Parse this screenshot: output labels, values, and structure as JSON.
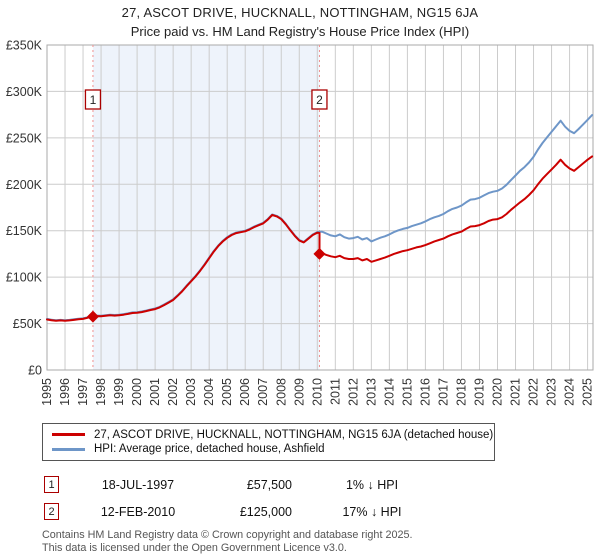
{
  "header": {
    "title": "27, ASCOT DRIVE, HUCKNALL, NOTTINGHAM, NG15 6JA",
    "subtitle": "Price paid vs. HM Land Registry's House Price Index (HPI)"
  },
  "chart_data": {
    "type": "line",
    "title": "Price paid vs. HPI",
    "xlim": [
      1995,
      2025.3
    ],
    "ylim": [
      0,
      350000
    ],
    "grid": true,
    "x_ticks": [
      1995,
      1996,
      1997,
      1998,
      1999,
      2000,
      2001,
      2002,
      2003,
      2004,
      2005,
      2006,
      2007,
      2008,
      2009,
      2010,
      2011,
      2012,
      2013,
      2014,
      2015,
      2016,
      2017,
      2018,
      2019,
      2020,
      2021,
      2022,
      2023,
      2024,
      2025
    ],
    "y_ticks": [
      {
        "value": 0,
        "label": "£0"
      },
      {
        "value": 50000,
        "label": "£50K"
      },
      {
        "value": 100000,
        "label": "£100K"
      },
      {
        "value": 150000,
        "label": "£150K"
      },
      {
        "value": 200000,
        "label": "£200K"
      },
      {
        "value": 250000,
        "label": "£250K"
      },
      {
        "value": 300000,
        "label": "£300K"
      },
      {
        "value": 350000,
        "label": "£350K"
      }
    ],
    "shaded_region": {
      "from": 1997.55,
      "to": 2010.12,
      "color": "#eef3fb"
    },
    "colors": {
      "grid": "#cccccc",
      "border": "#aaaaaa",
      "dashed": "#f09090",
      "marker_box_border": "#aa0000",
      "tick_text": "#333333"
    },
    "sales": [
      {
        "n": "1",
        "x": 1997.55,
        "price": 57500
      },
      {
        "n": "2",
        "x": 2010.12,
        "price": 125000
      }
    ],
    "series": [
      {
        "name": "HPI: Average price, detached house, Ashfield",
        "color": "#6e96c8",
        "points": [
          [
            1995,
            55000
          ],
          [
            1995.25,
            54200
          ],
          [
            1995.5,
            53600
          ],
          [
            1995.75,
            54000
          ],
          [
            1996,
            53600
          ],
          [
            1996.25,
            54000
          ],
          [
            1996.5,
            54600
          ],
          [
            1996.75,
            55200
          ],
          [
            1997,
            55600
          ],
          [
            1997.25,
            56800
          ],
          [
            1997.5,
            58100
          ],
          [
            1997.75,
            58600
          ],
          [
            1998,
            58400
          ],
          [
            1998.25,
            59000
          ],
          [
            1998.5,
            59600
          ],
          [
            1998.75,
            59200
          ],
          [
            1999,
            59600
          ],
          [
            1999.25,
            60200
          ],
          [
            1999.5,
            61000
          ],
          [
            1999.75,
            62000
          ],
          [
            2000,
            62200
          ],
          [
            2000.25,
            63000
          ],
          [
            2000.5,
            64000
          ],
          [
            2000.75,
            65200
          ],
          [
            2001,
            66200
          ],
          [
            2001.25,
            68000
          ],
          [
            2001.5,
            70500
          ],
          [
            2001.75,
            73200
          ],
          [
            2002,
            76000
          ],
          [
            2002.25,
            80500
          ],
          [
            2002.5,
            85200
          ],
          [
            2002.75,
            91000
          ],
          [
            2003,
            96200
          ],
          [
            2003.25,
            101500
          ],
          [
            2003.5,
            107500
          ],
          [
            2003.75,
            114000
          ],
          [
            2004,
            121000
          ],
          [
            2004.25,
            128000
          ],
          [
            2004.5,
            134000
          ],
          [
            2004.75,
            139000
          ],
          [
            2005,
            143000
          ],
          [
            2005.25,
            146000
          ],
          [
            2005.5,
            148000
          ],
          [
            2005.75,
            149000
          ],
          [
            2006,
            150000
          ],
          [
            2006.25,
            152000
          ],
          [
            2006.5,
            154500
          ],
          [
            2006.75,
            156500
          ],
          [
            2007,
            158500
          ],
          [
            2007.25,
            162500
          ],
          [
            2007.5,
            167500
          ],
          [
            2007.75,
            166000
          ],
          [
            2008,
            163000
          ],
          [
            2008.25,
            157500
          ],
          [
            2008.5,
            151000
          ],
          [
            2008.75,
            145000
          ],
          [
            2009,
            140000
          ],
          [
            2009.25,
            138000
          ],
          [
            2009.5,
            142000
          ],
          [
            2009.75,
            146000
          ],
          [
            2010,
            148500
          ],
          [
            2010.25,
            149000
          ],
          [
            2010.5,
            147000
          ],
          [
            2010.75,
            145000
          ],
          [
            2011,
            144000
          ],
          [
            2011.25,
            146000
          ],
          [
            2011.5,
            143000
          ],
          [
            2011.75,
            141500
          ],
          [
            2012,
            142000
          ],
          [
            2012.25,
            143500
          ],
          [
            2012.5,
            140500
          ],
          [
            2012.75,
            142000
          ],
          [
            2013,
            138500
          ],
          [
            2013.25,
            140500
          ],
          [
            2013.5,
            142500
          ],
          [
            2013.75,
            144000
          ],
          [
            2014,
            146000
          ],
          [
            2014.25,
            148500
          ],
          [
            2014.5,
            150500
          ],
          [
            2014.75,
            152000
          ],
          [
            2015,
            153000
          ],
          [
            2015.25,
            155000
          ],
          [
            2015.5,
            156500
          ],
          [
            2015.75,
            158000
          ],
          [
            2016,
            160000
          ],
          [
            2016.25,
            162500
          ],
          [
            2016.5,
            164500
          ],
          [
            2016.75,
            166000
          ],
          [
            2017,
            168000
          ],
          [
            2017.25,
            171000
          ],
          [
            2017.5,
            173500
          ],
          [
            2017.75,
            175000
          ],
          [
            2018,
            177000
          ],
          [
            2018.25,
            180500
          ],
          [
            2018.5,
            183500
          ],
          [
            2018.75,
            184000
          ],
          [
            2019,
            185500
          ],
          [
            2019.25,
            188000
          ],
          [
            2019.5,
            190500
          ],
          [
            2019.75,
            192000
          ],
          [
            2020,
            193000
          ],
          [
            2020.25,
            195500
          ],
          [
            2020.5,
            199500
          ],
          [
            2020.75,
            204500
          ],
          [
            2021,
            209500
          ],
          [
            2021.25,
            214500
          ],
          [
            2021.5,
            218500
          ],
          [
            2021.75,
            223500
          ],
          [
            2022,
            229500
          ],
          [
            2022.25,
            237500
          ],
          [
            2022.5,
            244500
          ],
          [
            2022.75,
            250500
          ],
          [
            2023,
            256500
          ],
          [
            2023.25,
            262500
          ],
          [
            2023.5,
            268500
          ],
          [
            2023.75,
            262000
          ],
          [
            2024,
            257500
          ],
          [
            2024.25,
            255000
          ],
          [
            2024.5,
            259500
          ],
          [
            2024.75,
            264500
          ],
          [
            2025,
            269500
          ],
          [
            2025.25,
            274500
          ]
        ]
      },
      {
        "name": "27, ASCOT DRIVE, HUCKNALL, NOTTINGHAM, NG15 6JA (detached house)",
        "color": "#cc0000",
        "points": [
          [
            1995,
            54400
          ],
          [
            1995.25,
            53600
          ],
          [
            1995.5,
            53000
          ],
          [
            1995.75,
            53400
          ],
          [
            1996,
            53000
          ],
          [
            1996.25,
            53400
          ],
          [
            1996.5,
            54000
          ],
          [
            1996.75,
            54600
          ],
          [
            1997,
            55000
          ],
          [
            1997.25,
            56200
          ],
          [
            1997.5,
            57500
          ],
          [
            1997.75,
            58000
          ],
          [
            1998,
            57800
          ],
          [
            1998.25,
            58400
          ],
          [
            1998.5,
            59000
          ],
          [
            1998.75,
            58600
          ],
          [
            1999,
            59000
          ],
          [
            1999.25,
            59600
          ],
          [
            1999.5,
            60400
          ],
          [
            1999.75,
            61400
          ],
          [
            2000,
            61600
          ],
          [
            2000.25,
            62400
          ],
          [
            2000.5,
            63400
          ],
          [
            2000.75,
            64600
          ],
          [
            2001,
            65600
          ],
          [
            2001.25,
            67400
          ],
          [
            2001.5,
            69900
          ],
          [
            2001.75,
            72600
          ],
          [
            2002,
            75400
          ],
          [
            2002.25,
            79900
          ],
          [
            2002.5,
            84600
          ],
          [
            2002.75,
            90400
          ],
          [
            2003,
            95600
          ],
          [
            2003.25,
            100900
          ],
          [
            2003.5,
            106900
          ],
          [
            2003.75,
            113400
          ],
          [
            2004,
            120400
          ],
          [
            2004.25,
            127400
          ],
          [
            2004.5,
            133400
          ],
          [
            2004.75,
            138400
          ],
          [
            2005,
            142400
          ],
          [
            2005.25,
            145400
          ],
          [
            2005.5,
            147400
          ],
          [
            2005.75,
            148400
          ],
          [
            2006,
            149400
          ],
          [
            2006.25,
            151400
          ],
          [
            2006.5,
            153900
          ],
          [
            2006.75,
            155900
          ],
          [
            2007,
            157900
          ],
          [
            2007.25,
            161900
          ],
          [
            2007.5,
            166900
          ],
          [
            2007.75,
            165400
          ],
          [
            2008,
            162400
          ],
          [
            2008.25,
            156900
          ],
          [
            2008.5,
            150400
          ],
          [
            2008.75,
            144400
          ],
          [
            2009,
            139400
          ],
          [
            2009.25,
            137400
          ],
          [
            2009.5,
            141400
          ],
          [
            2009.75,
            145400
          ],
          [
            2010,
            147900
          ],
          [
            2010.12,
            147500
          ],
          [
            2010.12,
            125000
          ],
          [
            2010.25,
            126000
          ],
          [
            2010.5,
            124000
          ],
          [
            2010.75,
            122500
          ],
          [
            2011,
            121500
          ],
          [
            2011.25,
            123000
          ],
          [
            2011.5,
            120500
          ],
          [
            2011.75,
            119500
          ],
          [
            2012,
            119500
          ],
          [
            2012.25,
            120500
          ],
          [
            2012.5,
            118000
          ],
          [
            2012.75,
            119500
          ],
          [
            2013,
            116500
          ],
          [
            2013.25,
            118000
          ],
          [
            2013.5,
            119500
          ],
          [
            2013.75,
            121000
          ],
          [
            2014,
            123000
          ],
          [
            2014.25,
            125000
          ],
          [
            2014.5,
            126500
          ],
          [
            2014.75,
            128000
          ],
          [
            2015,
            129000
          ],
          [
            2015.25,
            130500
          ],
          [
            2015.5,
            132000
          ],
          [
            2015.75,
            133000
          ],
          [
            2016,
            134500
          ],
          [
            2016.25,
            136500
          ],
          [
            2016.5,
            138500
          ],
          [
            2016.75,
            140000
          ],
          [
            2017,
            141500
          ],
          [
            2017.25,
            144000
          ],
          [
            2017.5,
            146000
          ],
          [
            2017.75,
            147500
          ],
          [
            2018,
            149000
          ],
          [
            2018.25,
            152000
          ],
          [
            2018.5,
            154500
          ],
          [
            2018.75,
            155000
          ],
          [
            2019,
            156000
          ],
          [
            2019.25,
            158000
          ],
          [
            2019.5,
            160500
          ],
          [
            2019.75,
            162000
          ],
          [
            2020,
            162500
          ],
          [
            2020.25,
            164500
          ],
          [
            2020.5,
            168000
          ],
          [
            2020.75,
            172500
          ],
          [
            2021,
            176500
          ],
          [
            2021.25,
            180500
          ],
          [
            2021.5,
            184000
          ],
          [
            2021.75,
            188500
          ],
          [
            2022,
            193500
          ],
          [
            2022.25,
            200000
          ],
          [
            2022.5,
            206000
          ],
          [
            2022.75,
            211000
          ],
          [
            2023,
            216000
          ],
          [
            2023.25,
            221000
          ],
          [
            2023.5,
            226500
          ],
          [
            2023.75,
            221000
          ],
          [
            2024,
            217000
          ],
          [
            2024.25,
            214500
          ],
          [
            2024.5,
            218500
          ],
          [
            2024.75,
            222500
          ],
          [
            2025,
            226500
          ],
          [
            2025.25,
            230000
          ]
        ]
      }
    ]
  },
  "legend": {
    "items": [
      {
        "label": "27, ASCOT DRIVE, HUCKNALL, NOTTINGHAM, NG15 6JA (detached house)",
        "color": "#cc0000"
      },
      {
        "label": "HPI: Average price, detached house, Ashfield",
        "color": "#6e96c8"
      }
    ]
  },
  "table": {
    "rows": [
      {
        "num": "1",
        "date": "18-JUL-1997",
        "price": "£57,500",
        "hpi": "1% ↓ HPI"
      },
      {
        "num": "2",
        "date": "12-FEB-2010",
        "price": "£125,000",
        "hpi": "17% ↓ HPI"
      }
    ]
  },
  "footer": {
    "line1": "Contains HM Land Registry data © Crown copyright and database right 2025.",
    "line2": "This data is licensed under the Open Government Licence v3.0."
  }
}
